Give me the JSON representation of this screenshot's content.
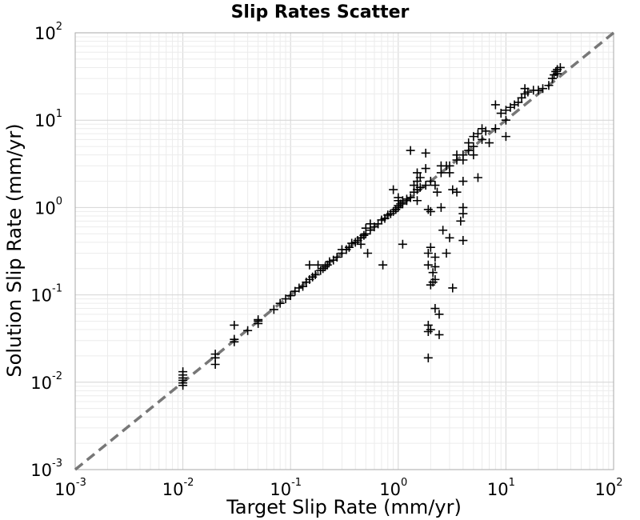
{
  "chart_data": {
    "type": "scatter",
    "title": "Slip Rates Scatter",
    "xlabel": "Target Slip Rate (mm/yr)",
    "ylabel": "Solution Slip Rate (mm/yr)",
    "xscale": "log",
    "yscale": "log",
    "xlim": [
      0.001,
      100
    ],
    "ylim": [
      0.001,
      100
    ],
    "grid": true,
    "tick_labels": [
      {
        "base": "10",
        "exp": "-3"
      },
      {
        "base": "10",
        "exp": "-2"
      },
      {
        "base": "10",
        "exp": "-1"
      },
      {
        "base": "10",
        "exp": "0"
      },
      {
        "base": "10",
        "exp": "1"
      },
      {
        "base": "10",
        "exp": "2"
      }
    ],
    "marker": "plus",
    "marker_color": "#000000",
    "reference_line": {
      "style": "dashed",
      "color": "#777777",
      "from": [
        0.001,
        0.001
      ],
      "to": [
        100,
        100
      ]
    },
    "points": [
      [
        0.01,
        0.0092
      ],
      [
        0.01,
        0.0098
      ],
      [
        0.01,
        0.0105
      ],
      [
        0.01,
        0.0112
      ],
      [
        0.01,
        0.0121
      ],
      [
        0.01,
        0.0132
      ],
      [
        0.02,
        0.016
      ],
      [
        0.02,
        0.019
      ],
      [
        0.02,
        0.021
      ],
      [
        0.03,
        0.029
      ],
      [
        0.03,
        0.031
      ],
      [
        0.03,
        0.045
      ],
      [
        0.04,
        0.039
      ],
      [
        0.05,
        0.047
      ],
      [
        0.05,
        0.05
      ],
      [
        0.05,
        0.052
      ],
      [
        0.07,
        0.068
      ],
      [
        0.08,
        0.08
      ],
      [
        0.09,
        0.09
      ],
      [
        0.1,
        0.098
      ],
      [
        0.11,
        0.11
      ],
      [
        0.12,
        0.12
      ],
      [
        0.13,
        0.125
      ],
      [
        0.14,
        0.14
      ],
      [
        0.15,
        0.15
      ],
      [
        0.15,
        0.22
      ],
      [
        0.16,
        0.16
      ],
      [
        0.17,
        0.17
      ],
      [
        0.18,
        0.22
      ],
      [
        0.19,
        0.19
      ],
      [
        0.2,
        0.2
      ],
      [
        0.21,
        0.21
      ],
      [
        0.22,
        0.22
      ],
      [
        0.23,
        0.24
      ],
      [
        0.25,
        0.25
      ],
      [
        0.27,
        0.27
      ],
      [
        0.3,
        0.3
      ],
      [
        0.3,
        0.33
      ],
      [
        0.33,
        0.33
      ],
      [
        0.35,
        0.35
      ],
      [
        0.37,
        0.39
      ],
      [
        0.4,
        0.4
      ],
      [
        0.42,
        0.42
      ],
      [
        0.45,
        0.45
      ],
      [
        0.45,
        0.38
      ],
      [
        0.48,
        0.48
      ],
      [
        0.5,
        0.5
      ],
      [
        0.5,
        0.58
      ],
      [
        0.52,
        0.3
      ],
      [
        0.55,
        0.55
      ],
      [
        0.55,
        0.65
      ],
      [
        0.6,
        0.6
      ],
      [
        0.65,
        0.65
      ],
      [
        0.7,
        0.72
      ],
      [
        0.72,
        0.22
      ],
      [
        0.75,
        0.75
      ],
      [
        0.8,
        0.82
      ],
      [
        0.85,
        0.85
      ],
      [
        0.9,
        0.9
      ],
      [
        0.9,
        1.6
      ],
      [
        0.95,
        0.95
      ],
      [
        1.0,
        1.0
      ],
      [
        1.0,
        1.05
      ],
      [
        1.0,
        1.2
      ],
      [
        1.0,
        1.3
      ],
      [
        1.05,
        1.1
      ],
      [
        1.1,
        1.1
      ],
      [
        1.1,
        1.15
      ],
      [
        1.1,
        1.2
      ],
      [
        1.1,
        0.38
      ],
      [
        1.2,
        1.2
      ],
      [
        1.2,
        1.25
      ],
      [
        1.3,
        1.3
      ],
      [
        1.3,
        4.5
      ],
      [
        1.4,
        1.5
      ],
      [
        1.4,
        1.8
      ],
      [
        1.5,
        1.6
      ],
      [
        1.5,
        2.0
      ],
      [
        1.5,
        2.5
      ],
      [
        1.5,
        1.2
      ],
      [
        1.6,
        1.7
      ],
      [
        1.6,
        2.2
      ],
      [
        1.8,
        1.8
      ],
      [
        1.8,
        2.8
      ],
      [
        1.8,
        4.2
      ],
      [
        1.9,
        0.045
      ],
      [
        1.9,
        0.038
      ],
      [
        1.9,
        0.019
      ],
      [
        1.9,
        0.22
      ],
      [
        1.9,
        0.3
      ],
      [
        1.9,
        0.95
      ],
      [
        2.0,
        2.0
      ],
      [
        2.0,
        0.04
      ],
      [
        2.0,
        0.13
      ],
      [
        2.0,
        0.35
      ],
      [
        2.0,
        0.9
      ],
      [
        2.1,
        0.14
      ],
      [
        2.1,
        0.18
      ],
      [
        2.2,
        0.15
      ],
      [
        2.2,
        0.21
      ],
      [
        2.2,
        0.27
      ],
      [
        2.2,
        0.07
      ],
      [
        2.2,
        1.8
      ],
      [
        2.3,
        1.5
      ],
      [
        2.4,
        0.06
      ],
      [
        2.4,
        0.035
      ],
      [
        2.5,
        2.5
      ],
      [
        2.5,
        3.0
      ],
      [
        2.5,
        1.0
      ],
      [
        2.6,
        0.55
      ],
      [
        2.8,
        0.3
      ],
      [
        2.8,
        3.0
      ],
      [
        3.0,
        3.0
      ],
      [
        3.0,
        2.5
      ],
      [
        3.0,
        0.45
      ],
      [
        3.2,
        1.6
      ],
      [
        3.2,
        0.12
      ],
      [
        3.5,
        3.5
      ],
      [
        3.5,
        4.0
      ],
      [
        3.5,
        1.5
      ],
      [
        3.8,
        0.7
      ],
      [
        4.0,
        4.0
      ],
      [
        4.0,
        3.5
      ],
      [
        4.0,
        0.85
      ],
      [
        4.0,
        1.0
      ],
      [
        4.0,
        0.42
      ],
      [
        4.0,
        2.0
      ],
      [
        4.5,
        4.5
      ],
      [
        4.5,
        5.5
      ],
      [
        5.0,
        5.0
      ],
      [
        5.0,
        6.5
      ],
      [
        5.0,
        4.0
      ],
      [
        5.5,
        7.0
      ],
      [
        5.5,
        2.2
      ],
      [
        6.0,
        6.0
      ],
      [
        6.0,
        8.0
      ],
      [
        6.5,
        7.5
      ],
      [
        7.0,
        5.5
      ],
      [
        8.0,
        8.0
      ],
      [
        8.0,
        15.0
      ],
      [
        9.0,
        12.0
      ],
      [
        10.0,
        10.0
      ],
      [
        10.0,
        6.5
      ],
      [
        10.0,
        13.0
      ],
      [
        11.0,
        14.0
      ],
      [
        12.0,
        15.0
      ],
      [
        13.0,
        16.0
      ],
      [
        14.0,
        18.0
      ],
      [
        15.0,
        20.0
      ],
      [
        15.0,
        23.0
      ],
      [
        16.0,
        21.0
      ],
      [
        18.0,
        22.0
      ],
      [
        20.0,
        22.0
      ],
      [
        22.0,
        23.0
      ],
      [
        25.0,
        25.0
      ],
      [
        27.0,
        30.0
      ],
      [
        28.0,
        33.0
      ],
      [
        29.0,
        36.0
      ],
      [
        30.0,
        34.0
      ],
      [
        30.0,
        38.0
      ],
      [
        32.0,
        40.0
      ]
    ]
  }
}
